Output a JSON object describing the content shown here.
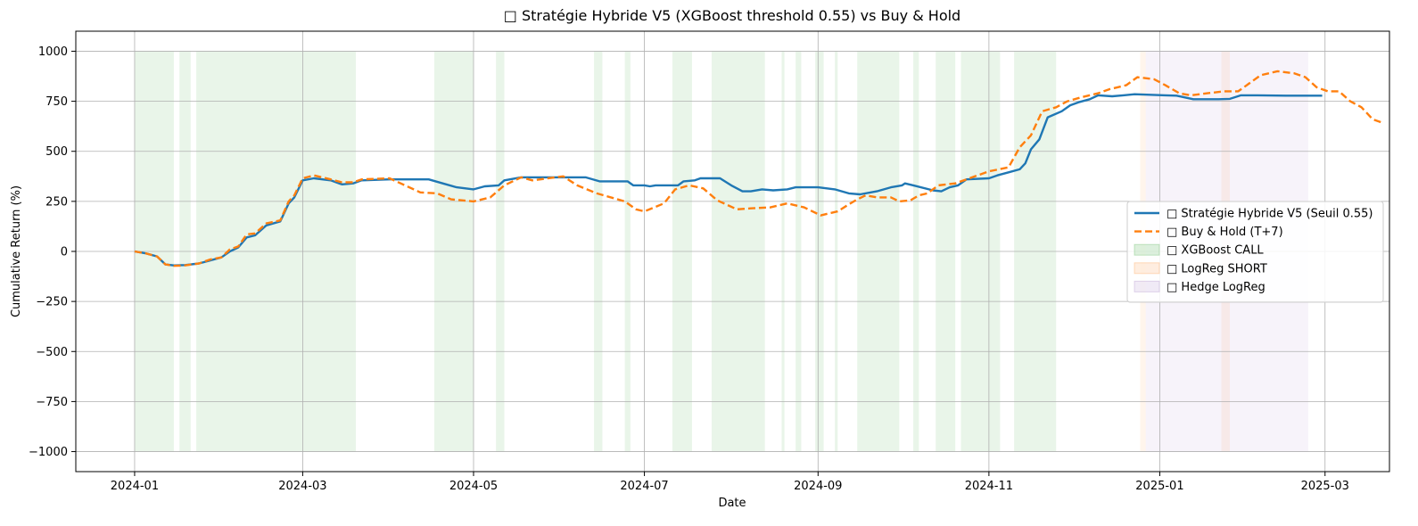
{
  "chart_data": {
    "type": "line",
    "title": "□ Stratégie Hybride V5 (XGBoost threshold 0.55) vs Buy & Hold",
    "xlabel": "Date",
    "ylabel": "Cumulative Return (%)",
    "ylim": [
      -1100,
      1100
    ],
    "xlim": [
      "2023-12-11",
      "2025-03-24"
    ],
    "grid": true,
    "legend_position": "center-right",
    "y_ticks": [
      -1000,
      -750,
      -500,
      -250,
      0,
      250,
      500,
      750,
      1000
    ],
    "y_tick_labels": [
      "−1000",
      "−750",
      "−500",
      "−250",
      "0",
      "250",
      "500",
      "750",
      "1000"
    ],
    "x_ticks": [
      "2024-01-01",
      "2024-03-01",
      "2024-05-01",
      "2024-07-01",
      "2024-09-01",
      "2024-11-01",
      "2025-01-01",
      "2025-03-01"
    ],
    "x_tick_labels": [
      "2024-01",
      "2024-03",
      "2024-05",
      "2024-07",
      "2024-09",
      "2024-11",
      "2025-01",
      "2025-03"
    ],
    "series": [
      {
        "name": "□ Stratégie Hybride V5 (Seuil 0.55)",
        "color": "#1f77b4",
        "style": "solid",
        "points": [
          [
            "2024-01-01",
            0
          ],
          [
            "2024-01-05",
            -10
          ],
          [
            "2024-01-09",
            -25
          ],
          [
            "2024-01-12",
            -65
          ],
          [
            "2024-01-15",
            -70
          ],
          [
            "2024-01-19",
            -68
          ],
          [
            "2024-01-24",
            -60
          ],
          [
            "2024-01-28",
            -45
          ],
          [
            "2024-02-01",
            -30
          ],
          [
            "2024-02-04",
            0
          ],
          [
            "2024-02-07",
            20
          ],
          [
            "2024-02-10",
            70
          ],
          [
            "2024-02-13",
            80
          ],
          [
            "2024-02-17",
            130
          ],
          [
            "2024-02-22",
            150
          ],
          [
            "2024-02-25",
            240
          ],
          [
            "2024-02-27",
            270
          ],
          [
            "2024-03-01",
            355
          ],
          [
            "2024-03-05",
            365
          ],
          [
            "2024-03-11",
            355
          ],
          [
            "2024-03-15",
            335
          ],
          [
            "2024-03-19",
            340
          ],
          [
            "2024-03-22",
            355
          ],
          [
            "2024-04-01",
            360
          ],
          [
            "2024-04-15",
            360
          ],
          [
            "2024-04-20",
            340
          ],
          [
            "2024-04-25",
            320
          ],
          [
            "2024-05-01",
            310
          ],
          [
            "2024-05-05",
            325
          ],
          [
            "2024-05-10",
            330
          ],
          [
            "2024-05-12",
            355
          ],
          [
            "2024-05-18",
            370
          ],
          [
            "2024-06-10",
            370
          ],
          [
            "2024-06-15",
            350
          ],
          [
            "2024-06-25",
            350
          ],
          [
            "2024-06-27",
            330
          ],
          [
            "2024-07-01",
            330
          ],
          [
            "2024-07-03",
            325
          ],
          [
            "2024-07-05",
            330
          ],
          [
            "2024-07-13",
            330
          ],
          [
            "2024-07-15",
            350
          ],
          [
            "2024-07-19",
            355
          ],
          [
            "2024-07-21",
            365
          ],
          [
            "2024-07-28",
            365
          ],
          [
            "2024-08-01",
            330
          ],
          [
            "2024-08-05",
            300
          ],
          [
            "2024-08-08",
            300
          ],
          [
            "2024-08-12",
            310
          ],
          [
            "2024-08-16",
            305
          ],
          [
            "2024-08-21",
            310
          ],
          [
            "2024-08-24",
            320
          ],
          [
            "2024-09-01",
            320
          ],
          [
            "2024-09-07",
            310
          ],
          [
            "2024-09-12",
            290
          ],
          [
            "2024-09-16",
            285
          ],
          [
            "2024-09-22",
            300
          ],
          [
            "2024-09-27",
            320
          ],
          [
            "2024-10-01",
            330
          ],
          [
            "2024-10-02",
            340
          ],
          [
            "2024-10-05",
            330
          ],
          [
            "2024-10-12",
            305
          ],
          [
            "2024-10-15",
            300
          ],
          [
            "2024-10-18",
            320
          ],
          [
            "2024-10-21",
            330
          ],
          [
            "2024-10-24",
            360
          ],
          [
            "2024-11-01",
            365
          ],
          [
            "2024-11-04",
            380
          ],
          [
            "2024-11-08",
            395
          ],
          [
            "2024-11-12",
            410
          ],
          [
            "2024-11-14",
            440
          ],
          [
            "2024-11-16",
            510
          ],
          [
            "2024-11-19",
            560
          ],
          [
            "2024-11-22",
            670
          ],
          [
            "2024-11-27",
            700
          ],
          [
            "2024-11-30",
            730
          ],
          [
            "2024-12-03",
            745
          ],
          [
            "2024-12-07",
            760
          ],
          [
            "2024-12-10",
            780
          ],
          [
            "2024-12-15",
            775
          ],
          [
            "2024-12-19",
            780
          ],
          [
            "2024-12-23",
            785
          ],
          [
            "2025-01-03",
            780
          ],
          [
            "2025-01-07",
            778
          ],
          [
            "2025-01-13",
            760
          ],
          [
            "2025-01-22",
            760
          ],
          [
            "2025-01-26",
            762
          ],
          [
            "2025-01-30",
            780
          ],
          [
            "2025-02-05",
            780
          ],
          [
            "2025-02-15",
            778
          ],
          [
            "2025-02-28",
            778
          ]
        ]
      },
      {
        "name": "□ Buy & Hold (T+7)",
        "color": "#ff7f0e",
        "style": "dashed",
        "points": [
          [
            "2024-01-01",
            0
          ],
          [
            "2024-01-05",
            -10
          ],
          [
            "2024-01-09",
            -25
          ],
          [
            "2024-01-12",
            -65
          ],
          [
            "2024-01-15",
            -72
          ],
          [
            "2024-01-19",
            -70
          ],
          [
            "2024-01-24",
            -60
          ],
          [
            "2024-01-28",
            -40
          ],
          [
            "2024-02-01",
            -30
          ],
          [
            "2024-02-04",
            10
          ],
          [
            "2024-02-07",
            25
          ],
          [
            "2024-02-10",
            85
          ],
          [
            "2024-02-13",
            90
          ],
          [
            "2024-02-17",
            140
          ],
          [
            "2024-02-22",
            155
          ],
          [
            "2024-02-25",
            250
          ],
          [
            "2024-02-27",
            280
          ],
          [
            "2024-03-01",
            365
          ],
          [
            "2024-03-05",
            380
          ],
          [
            "2024-03-11",
            360
          ],
          [
            "2024-03-15",
            345
          ],
          [
            "2024-03-19",
            345
          ],
          [
            "2024-03-22",
            360
          ],
          [
            "2024-04-01",
            365
          ],
          [
            "2024-04-05",
            340
          ],
          [
            "2024-04-12",
            295
          ],
          [
            "2024-04-18",
            290
          ],
          [
            "2024-04-23",
            260
          ],
          [
            "2024-05-01",
            250
          ],
          [
            "2024-05-07",
            270
          ],
          [
            "2024-05-12",
            330
          ],
          [
            "2024-05-18",
            370
          ],
          [
            "2024-05-22",
            355
          ],
          [
            "2024-06-02",
            375
          ],
          [
            "2024-06-07",
            330
          ],
          [
            "2024-06-14",
            290
          ],
          [
            "2024-06-24",
            250
          ],
          [
            "2024-06-28",
            210
          ],
          [
            "2024-07-01",
            200
          ],
          [
            "2024-07-08",
            240
          ],
          [
            "2024-07-12",
            310
          ],
          [
            "2024-07-17",
            330
          ],
          [
            "2024-07-22",
            315
          ],
          [
            "2024-07-27",
            255
          ],
          [
            "2024-08-03",
            210
          ],
          [
            "2024-08-08",
            215
          ],
          [
            "2024-08-15",
            220
          ],
          [
            "2024-08-21",
            240
          ],
          [
            "2024-08-27",
            220
          ],
          [
            "2024-09-02",
            180
          ],
          [
            "2024-09-05",
            190
          ],
          [
            "2024-09-08",
            200
          ],
          [
            "2024-09-12",
            235
          ],
          [
            "2024-09-15",
            260
          ],
          [
            "2024-09-18",
            280
          ],
          [
            "2024-09-22",
            270
          ],
          [
            "2024-09-27",
            270
          ],
          [
            "2024-09-30",
            250
          ],
          [
            "2024-10-04",
            255
          ],
          [
            "2024-10-07",
            280
          ],
          [
            "2024-10-10",
            290
          ],
          [
            "2024-10-14",
            330
          ],
          [
            "2024-10-20",
            340
          ],
          [
            "2024-10-26",
            370
          ],
          [
            "2024-11-01",
            400
          ],
          [
            "2024-11-08",
            420
          ],
          [
            "2024-11-12",
            520
          ],
          [
            "2024-11-16",
            580
          ],
          [
            "2024-11-20",
            700
          ],
          [
            "2024-11-25",
            720
          ],
          [
            "2024-11-29",
            750
          ],
          [
            "2024-12-04",
            770
          ],
          [
            "2024-12-10",
            790
          ],
          [
            "2024-12-14",
            810
          ],
          [
            "2024-12-20",
            830
          ],
          [
            "2024-12-24",
            870
          ],
          [
            "2024-12-30",
            860
          ],
          [
            "2025-01-03",
            830
          ],
          [
            "2025-01-08",
            790
          ],
          [
            "2025-01-12",
            780
          ],
          [
            "2025-01-18",
            790
          ],
          [
            "2025-01-24",
            800
          ],
          [
            "2025-01-29",
            800
          ],
          [
            "2025-02-02",
            840
          ],
          [
            "2025-02-06",
            880
          ],
          [
            "2025-02-12",
            900
          ],
          [
            "2025-02-18",
            890
          ],
          [
            "2025-02-22",
            870
          ],
          [
            "2025-02-26",
            820
          ],
          [
            "2025-03-02",
            800
          ],
          [
            "2025-03-06",
            800
          ],
          [
            "2025-03-10",
            750
          ],
          [
            "2025-03-14",
            720
          ],
          [
            "2025-03-18",
            660
          ],
          [
            "2025-03-22",
            640
          ]
        ]
      }
    ],
    "regions": [
      {
        "name": "□ XGBoost CALL",
        "color": "#2ca02c",
        "opacity": 0.1,
        "spans": [
          [
            "2024-01-01",
            "2024-01-15"
          ],
          [
            "2024-01-17",
            "2024-01-21"
          ],
          [
            "2024-01-23",
            "2024-03-20"
          ],
          [
            "2024-04-17",
            "2024-05-01"
          ],
          [
            "2024-05-09",
            "2024-05-12"
          ],
          [
            "2024-06-13",
            "2024-06-16"
          ],
          [
            "2024-06-24",
            "2024-06-26"
          ],
          [
            "2024-07-11",
            "2024-07-18"
          ],
          [
            "2024-07-25",
            "2024-08-13"
          ],
          [
            "2024-08-19",
            "2024-08-20"
          ],
          [
            "2024-08-24",
            "2024-08-26"
          ],
          [
            "2024-08-31",
            "2024-09-03"
          ],
          [
            "2024-09-07",
            "2024-09-08"
          ],
          [
            "2024-09-15",
            "2024-09-30"
          ],
          [
            "2024-10-05",
            "2024-10-07"
          ],
          [
            "2024-10-13",
            "2024-10-20"
          ],
          [
            "2024-10-22",
            "2024-11-05"
          ],
          [
            "2024-11-10",
            "2024-11-25"
          ]
        ]
      },
      {
        "name": "□ LogReg SHORT",
        "color": "#ff7f0e",
        "opacity": 0.08,
        "spans": [
          [
            "2024-12-25",
            "2024-12-27"
          ],
          [
            "2025-01-23",
            "2025-01-26"
          ]
        ]
      },
      {
        "name": "□ Hedge LogReg",
        "color": "#9467bd",
        "opacity": 0.08,
        "spans": [
          [
            "2024-12-27",
            "2025-02-23"
          ]
        ]
      }
    ]
  }
}
